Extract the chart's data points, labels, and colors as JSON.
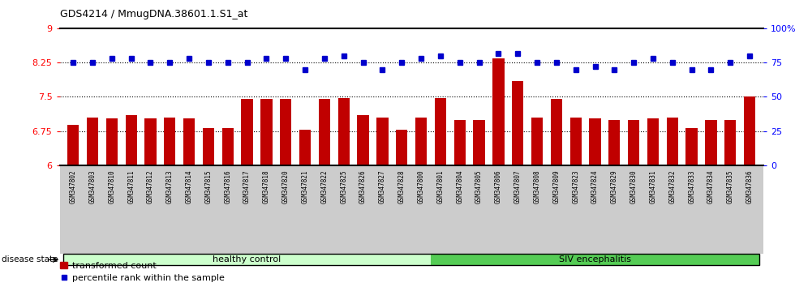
{
  "title": "GDS4214 / MmugDNA.38601.1.S1_at",
  "samples": [
    "GSM347802",
    "GSM347803",
    "GSM347810",
    "GSM347811",
    "GSM347812",
    "GSM347813",
    "GSM347814",
    "GSM347815",
    "GSM347816",
    "GSM347817",
    "GSM347818",
    "GSM347820",
    "GSM347821",
    "GSM347822",
    "GSM347825",
    "GSM347826",
    "GSM347827",
    "GSM347828",
    "GSM347800",
    "GSM347801",
    "GSM347804",
    "GSM347805",
    "GSM347806",
    "GSM347807",
    "GSM347808",
    "GSM347809",
    "GSM347823",
    "GSM347824",
    "GSM347829",
    "GSM347830",
    "GSM347831",
    "GSM347832",
    "GSM347833",
    "GSM347834",
    "GSM347835",
    "GSM347836"
  ],
  "bar_values": [
    6.88,
    7.05,
    7.02,
    7.1,
    7.02,
    7.05,
    7.02,
    6.82,
    6.82,
    7.45,
    7.45,
    7.45,
    6.77,
    7.45,
    7.47,
    7.1,
    7.05,
    6.77,
    7.05,
    7.47,
    7.0,
    7.0,
    8.35,
    7.85,
    7.05,
    7.45,
    7.05,
    7.02,
    7.0,
    7.0,
    7.02,
    7.05,
    6.82,
    7.0,
    7.0,
    7.5
  ],
  "percentile_values": [
    75,
    75,
    78,
    78,
    75,
    75,
    78,
    75,
    75,
    75,
    78,
    78,
    70,
    78,
    80,
    75,
    70,
    75,
    78,
    80,
    75,
    75,
    82,
    82,
    75,
    75,
    70,
    72,
    70,
    75,
    78,
    75,
    70,
    70,
    75,
    80
  ],
  "n_samples": 36,
  "n_healthy": 19,
  "n_siv": 17,
  "ylim_left": [
    6,
    9
  ],
  "ylim_right": [
    0,
    100
  ],
  "yticks_left": [
    6,
    6.75,
    7.5,
    8.25,
    9
  ],
  "ytick_labels_left": [
    "6",
    "6.75",
    "7.5",
    "8.25",
    "9"
  ],
  "yticks_right": [
    0,
    25,
    50,
    75,
    100
  ],
  "ytick_labels_right": [
    "0",
    "25",
    "50",
    "75",
    "100%"
  ],
  "hlines": [
    6.75,
    7.5,
    8.25
  ],
  "bar_color": "#c00000",
  "dot_color": "#0000cc",
  "healthy_color": "#ccffcc",
  "siv_color": "#55cc55",
  "xtick_bg_color": "#cccccc",
  "healthy_label": "healthy control",
  "siv_label": "SIV encephalitis",
  "disease_state_label": "disease state",
  "legend_bar_label": "transformed count",
  "legend_dot_label": "percentile rank within the sample"
}
